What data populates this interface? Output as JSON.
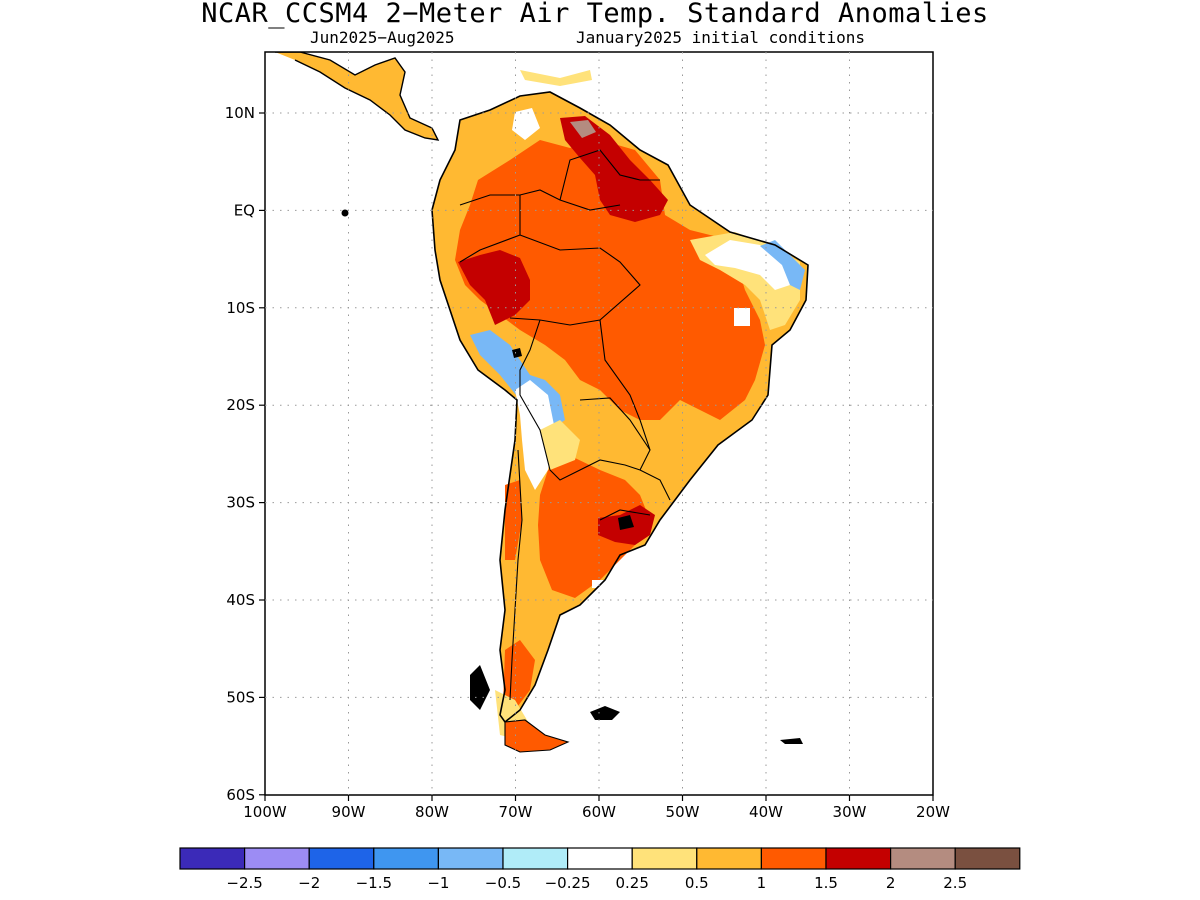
{
  "title": "NCAR_CCSM4 2−Meter Air Temp. Standard Anomalies",
  "subtitle_left": "Jun2025−Aug2025",
  "subtitle_right": "January2025 initial conditions",
  "lat_labels": [
    "10N",
    "EQ",
    "10S",
    "20S",
    "30S",
    "40S",
    "50S",
    "60S"
  ],
  "lon_labels": [
    "100W",
    "90W",
    "80W",
    "70W",
    "60W",
    "50W",
    "40W",
    "30W",
    "20W"
  ],
  "colorbar": {
    "colors": [
      "#3b2ab8",
      "#9c8cf4",
      "#1e64e8",
      "#3f96f0",
      "#78b8f6",
      "#b0ecf8",
      "#ffffff",
      "#ffe27a",
      "#ffb932",
      "#ff5a00",
      "#c40000",
      "#b48c80",
      "#7a5040"
    ],
    "tick_labels": [
      "−2.5",
      "−2",
      "−1.5",
      "−1",
      "−0.5",
      "−0.25",
      "0.25",
      "0.5",
      "1",
      "1.5",
      "2",
      "2.5"
    ]
  }
}
